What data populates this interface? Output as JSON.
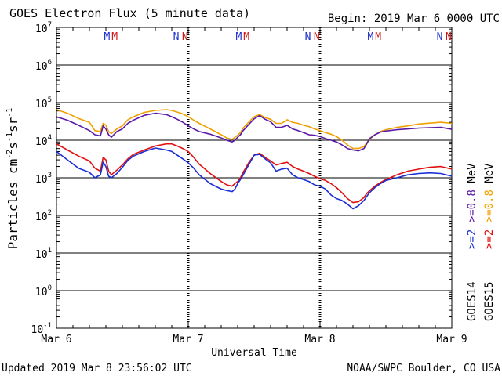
{
  "chart_data": {
    "type": "line",
    "title": "GOES Electron Flux (5 minute data)",
    "begin": "Begin: 2019 Mar 6 0000 UTC",
    "xlabel": "Universal Time",
    "ylabel": "Particles cm",
    "ylabel_parts": {
      "base": "Particles cm",
      "exp1": "-2",
      "mid": "s",
      "exp2": "-1",
      "tail": "sr",
      "exp3": "-1"
    },
    "xaxis": {
      "range_hours": [
        0,
        72
      ],
      "tick_labels": [
        "Mar 6",
        "Mar 7",
        "Mar 8",
        "Mar 9"
      ],
      "tick_hours": [
        0,
        24,
        48,
        72
      ]
    },
    "yaxis": {
      "scale": "log",
      "range": [
        0.1,
        10000000
      ],
      "tick_labels": [
        {
          "base": "10",
          "exp": "7",
          "value": 10000000
        },
        {
          "base": "10",
          "exp": "6",
          "value": 1000000
        },
        {
          "base": "10",
          "exp": "5",
          "value": 100000
        },
        {
          "base": "10",
          "exp": "4",
          "value": 10000
        },
        {
          "base": "10",
          "exp": "3",
          "value": 1000
        },
        {
          "base": "10",
          "exp": "2",
          "value": 100
        },
        {
          "base": "10",
          "exp": "1",
          "value": 10
        },
        {
          "base": "10",
          "exp": "0",
          "value": 1
        },
        {
          "base": "10",
          "exp": "-1",
          "value": 0.1
        }
      ]
    },
    "threshold": 1000,
    "markers": [
      {
        "label": "M",
        "hour": 9.2,
        "color": "#1f2fd0"
      },
      {
        "label": "M",
        "hour": 10.6,
        "color": "#d01818"
      },
      {
        "label": "N",
        "hour": 21.8,
        "color": "#1f2fd0"
      },
      {
        "label": "N",
        "hour": 23.4,
        "color": "#d01818"
      },
      {
        "label": "M",
        "hour": 33.2,
        "color": "#1f2fd0"
      },
      {
        "label": "M",
        "hour": 34.6,
        "color": "#d01818"
      },
      {
        "label": "N",
        "hour": 45.8,
        "color": "#1f2fd0"
      },
      {
        "label": "N",
        "hour": 47.4,
        "color": "#d01818"
      },
      {
        "label": "M",
        "hour": 57.2,
        "color": "#1f2fd0"
      },
      {
        "label": "M",
        "hour": 58.6,
        "color": "#d01818"
      },
      {
        "label": "N",
        "hour": 69.8,
        "color": "#1f2fd0"
      },
      {
        "label": "N",
        "hour": 71.4,
        "color": "#d01818"
      }
    ],
    "series": [
      {
        "name": ">=0.8 MeV",
        "satellite": "GOES15",
        "color": "#f0a000",
        "x": [
          0,
          2,
          4,
          6,
          7,
          8,
          8.5,
          9,
          9.5,
          10,
          11,
          12,
          13,
          14,
          16,
          18,
          20,
          21,
          22,
          23,
          24,
          25,
          26,
          28,
          30,
          31,
          32,
          32.5,
          33,
          33.5,
          34,
          35,
          36,
          37,
          38,
          39,
          40,
          41,
          42,
          43,
          44,
          45,
          46,
          47,
          48,
          49,
          50,
          51,
          52,
          53,
          54,
          55,
          56,
          56.5,
          57,
          58,
          59,
          60,
          62,
          64,
          66,
          68,
          70,
          72
        ],
        "y": [
          65000,
          52000,
          38000,
          30000,
          18000,
          17000,
          28000,
          25000,
          17000,
          15000,
          20000,
          24000,
          35000,
          42000,
          55000,
          62000,
          65000,
          62000,
          56000,
          50000,
          42000,
          34000,
          28000,
          20000,
          14000,
          11500,
          10500,
          12000,
          13500,
          16000,
          21000,
          30000,
          42000,
          48000,
          40000,
          36000,
          28000,
          28000,
          35000,
          30000,
          28000,
          25000,
          23000,
          20000,
          18000,
          16000,
          14500,
          12500,
          10000,
          7500,
          6000,
          6000,
          6800,
          8500,
          10500,
          14000,
          17000,
          19000,
          22000,
          24000,
          27000,
          28500,
          30000,
          28000
        ]
      },
      {
        "name": ">=0.8 MeV",
        "satellite": "GOES14",
        "color": "#5a1aa8",
        "x": [
          0,
          2,
          4,
          6,
          7,
          8,
          8.5,
          9,
          9.5,
          10,
          11,
          12,
          13,
          14,
          16,
          18,
          20,
          21,
          22,
          23,
          24,
          25,
          26,
          28,
          30,
          31,
          32,
          32.5,
          33,
          33.5,
          34,
          35,
          36,
          37,
          38,
          39,
          40,
          41,
          42,
          43,
          44,
          45,
          46,
          47,
          48,
          49,
          50,
          51,
          52,
          53,
          54,
          55,
          56,
          56.5,
          57,
          58,
          59,
          60,
          62,
          64,
          66,
          68,
          70,
          72
        ],
        "y": [
          42000,
          34000,
          25000,
          18000,
          14000,
          13000,
          24000,
          20000,
          14000,
          12000,
          17000,
          20000,
          28000,
          34000,
          46000,
          52000,
          48000,
          42000,
          36000,
          30000,
          24000,
          20000,
          17000,
          14500,
          11500,
          10000,
          9000,
          10000,
          12000,
          14000,
          18000,
          26000,
          37000,
          45000,
          36000,
          31000,
          22000,
          22000,
          25000,
          20000,
          18000,
          16000,
          14000,
          13500,
          12500,
          11000,
          10000,
          9000,
          7500,
          6000,
          5500,
          5200,
          6000,
          8000,
          11000,
          14000,
          16500,
          17500,
          19000,
          20000,
          21000,
          21500,
          22000,
          19500
        ]
      },
      {
        "name": ">=2 MeV",
        "satellite": "GOES15",
        "color": "#e01010",
        "x": [
          0,
          2,
          4,
          6,
          7,
          8,
          8.5,
          9,
          9.5,
          10,
          11,
          12,
          13,
          14,
          16,
          18,
          20,
          21,
          22,
          23,
          24,
          25,
          26,
          28,
          30,
          31,
          32,
          32.5,
          33,
          33.5,
          34,
          35,
          36,
          37,
          38,
          39,
          40,
          41,
          42,
          43,
          44,
          45,
          46,
          47,
          48,
          49,
          50,
          51,
          52,
          53,
          54,
          55,
          56,
          56.5,
          57,
          58,
          59,
          60,
          62,
          64,
          66,
          68,
          70,
          72
        ],
        "y": [
          8000,
          5500,
          3800,
          2800,
          1800,
          1500,
          3500,
          3000,
          1500,
          1200,
          1600,
          2200,
          3200,
          4200,
          5500,
          7000,
          8000,
          8000,
          7000,
          6000,
          5000,
          3500,
          2300,
          1300,
          800,
          650,
          600,
          700,
          800,
          1000,
          1400,
          2500,
          4000,
          4500,
          3500,
          2800,
          2200,
          2400,
          2600,
          2000,
          1700,
          1500,
          1300,
          1100,
          950,
          850,
          700,
          550,
          400,
          280,
          220,
          230,
          300,
          380,
          450,
          600,
          750,
          900,
          1200,
          1500,
          1700,
          1900,
          2000,
          1700
        ]
      },
      {
        "name": ">=2 MeV",
        "satellite": "GOES14",
        "color": "#1a2fd6",
        "x": [
          0,
          2,
          4,
          6,
          7,
          8,
          8.5,
          9,
          9.5,
          10,
          11,
          12,
          13,
          14,
          16,
          18,
          20,
          21,
          22,
          23,
          24,
          25,
          26,
          28,
          30,
          31,
          32,
          32.5,
          33,
          33.5,
          34,
          35,
          36,
          37,
          38,
          39,
          40,
          41,
          42,
          43,
          44,
          45,
          46,
          47,
          48,
          49,
          50,
          51,
          52,
          53,
          54,
          55,
          56,
          56.5,
          57,
          58,
          59,
          60,
          62,
          64,
          66,
          68,
          70,
          72
        ],
        "y": [
          5000,
          3000,
          1800,
          1400,
          1000,
          1200,
          2600,
          2000,
          1100,
          1000,
          1300,
          1900,
          2900,
          3800,
          5000,
          6200,
          5500,
          5000,
          4000,
          3200,
          2500,
          1800,
          1200,
          700,
          500,
          460,
          430,
          500,
          700,
          900,
          1200,
          2200,
          4000,
          4200,
          3200,
          2500,
          1500,
          1700,
          1800,
          1200,
          1000,
          900,
          800,
          650,
          600,
          500,
          350,
          280,
          250,
          200,
          150,
          180,
          250,
          320,
          400,
          550,
          700,
          850,
          1000,
          1200,
          1300,
          1350,
          1300,
          1100
        ]
      }
    ],
    "legend": [
      {
        "satellite": "GOES14",
        "entries": [
          {
            "text": ">=2",
            "color": "#1a2fd6"
          },
          {
            "text": ">=0.8",
            "color": "#5a1aa8"
          },
          {
            "text": "MeV",
            "color": "#000000"
          }
        ]
      },
      {
        "satellite": "GOES15",
        "entries": [
          {
            "text": ">=2",
            "color": "#e01010"
          },
          {
            "text": ">=0.8",
            "color": "#f0a000"
          },
          {
            "text": "MeV",
            "color": "#000000"
          }
        ]
      }
    ]
  },
  "footer": {
    "updated": "Updated 2019 Mar  8 23:56:02 UTC",
    "source": "NOAA/SWPC Boulder, CO USA"
  }
}
